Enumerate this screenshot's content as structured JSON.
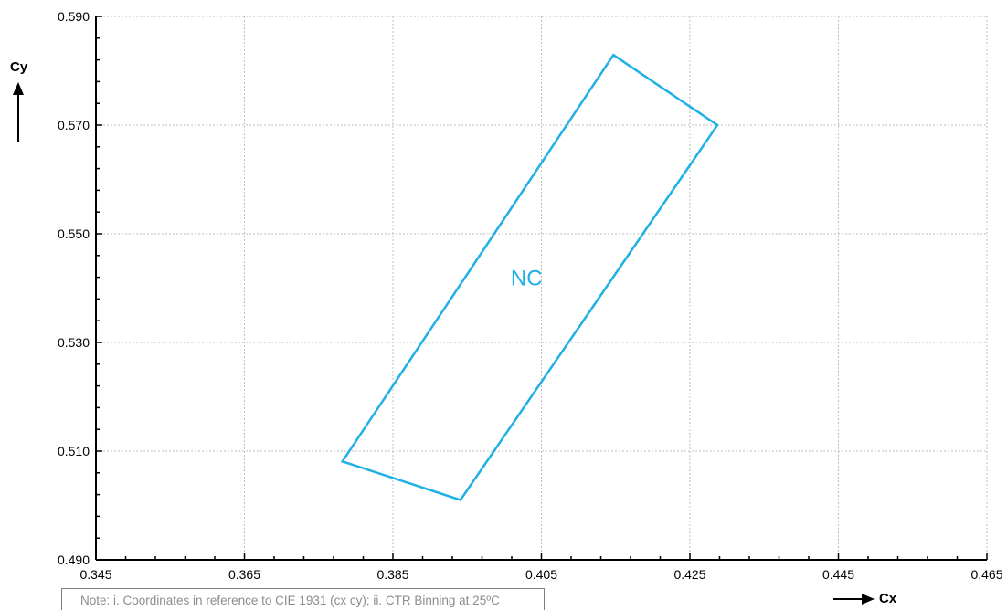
{
  "chart_data": {
    "type": "scatter",
    "xlabel": "Cx",
    "ylabel": "Cy",
    "xlim": [
      0.345,
      0.465
    ],
    "ylim": [
      0.49,
      0.59
    ],
    "x_ticks": [
      "0.345",
      "0.365",
      "0.385",
      "0.405",
      "0.425",
      "0.445",
      "0.465"
    ],
    "y_ticks": [
      "0.490",
      "0.510",
      "0.530",
      "0.550",
      "0.570",
      "0.590"
    ],
    "grid": true,
    "series": [
      {
        "name": "NC",
        "closed": true,
        "points": [
          {
            "x": 0.4147,
            "y": 0.5829
          },
          {
            "x": 0.4287,
            "y": 0.57
          },
          {
            "x": 0.3941,
            "y": 0.501
          },
          {
            "x": 0.3782,
            "y": 0.5081
          }
        ],
        "label_at": {
          "x": 0.403,
          "y": 0.5405
        }
      }
    ],
    "colors": {
      "series": "#1fb0e6",
      "grid": "#bfbfbf",
      "axis": "#000000"
    }
  },
  "note": "Note: i. Coordinates in reference to CIE 1931 (cx cy); ii. CTR Binning at 25ºC"
}
